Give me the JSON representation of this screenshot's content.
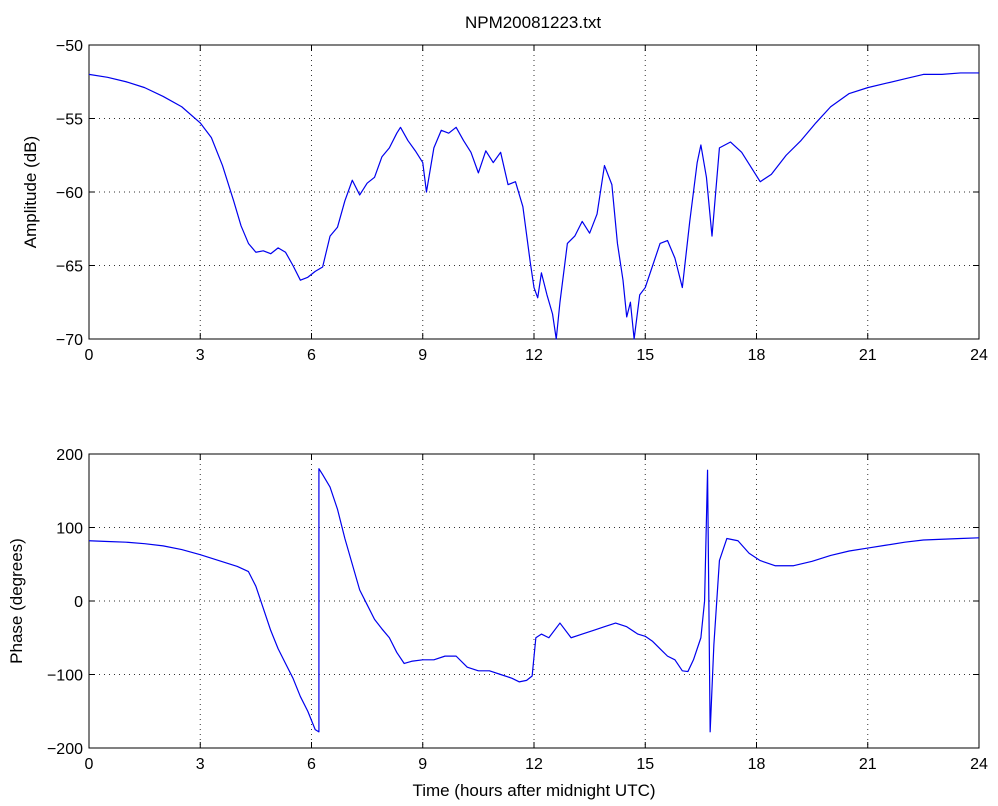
{
  "figure": {
    "title": "NPM20081223.txt"
  },
  "chart_data": [
    {
      "type": "line",
      "ylabel": "Amplitude (dB)",
      "xlabel": "",
      "xlim": [
        0,
        24
      ],
      "ylim": [
        -70,
        -50
      ],
      "xticks": [
        0,
        3,
        6,
        9,
        12,
        15,
        18,
        21,
        24
      ],
      "yticks": [
        -70,
        -65,
        -60,
        -55,
        -50
      ],
      "grid": true,
      "color": "#0000ee",
      "series": [
        {
          "x": [
            0,
            0.5,
            1,
            1.5,
            2,
            2.5,
            3,
            3.3,
            3.6,
            3.9,
            4.1,
            4.3,
            4.5,
            4.7,
            4.9,
            5.1,
            5.3,
            5.5,
            5.7,
            5.9,
            6.1,
            6.3,
            6.5,
            6.7,
            6.9,
            7.1,
            7.3,
            7.5,
            7.7,
            7.9,
            8.1,
            8.3,
            8.4,
            8.6,
            8.8,
            9.0,
            9.1,
            9.3,
            9.5,
            9.7,
            9.9,
            10.1,
            10.3,
            10.5,
            10.7,
            10.9,
            11.1,
            11.3,
            11.5,
            11.7,
            11.9,
            12.0,
            12.1,
            12.2,
            12.35,
            12.5,
            12.6,
            12.7,
            12.9,
            13.1,
            13.3,
            13.5,
            13.7,
            13.9,
            14.1,
            14.25,
            14.4,
            14.5,
            14.6,
            14.7,
            14.85,
            15.0,
            15.2,
            15.4,
            15.6,
            15.8,
            16.0,
            16.2,
            16.4,
            16.5,
            16.65,
            16.8,
            17.0,
            17.3,
            17.6,
            17.9,
            18.1,
            18.4,
            18.8,
            19.2,
            19.6,
            20.0,
            20.5,
            21.0,
            21.5,
            22.0,
            22.5,
            23.0,
            23.5,
            24.0
          ],
          "y": [
            -52.0,
            -52.2,
            -52.5,
            -52.9,
            -53.5,
            -54.2,
            -55.3,
            -56.3,
            -58.2,
            -60.6,
            -62.3,
            -63.5,
            -64.1,
            -64.0,
            -64.2,
            -63.8,
            -64.1,
            -65.0,
            -66.0,
            -65.8,
            -65.4,
            -65.1,
            -63.0,
            -62.4,
            -60.6,
            -59.2,
            -60.2,
            -59.4,
            -59.0,
            -57.6,
            -57.0,
            -56.0,
            -55.6,
            -56.5,
            -57.2,
            -58.0,
            -60.0,
            -57.0,
            -55.8,
            -56.0,
            -55.6,
            -56.5,
            -57.3,
            -58.7,
            -57.2,
            -58.0,
            -57.3,
            -59.5,
            -59.3,
            -61.0,
            -64.8,
            -66.5,
            -67.2,
            -65.5,
            -67.0,
            -68.3,
            -70.0,
            -67.5,
            -63.5,
            -63.0,
            -62.0,
            -62.8,
            -61.5,
            -58.2,
            -59.5,
            -63.5,
            -66.0,
            -68.5,
            -67.5,
            -70.0,
            -67.0,
            -66.5,
            -65.0,
            -63.5,
            -63.3,
            -64.5,
            -66.5,
            -62.0,
            -58.0,
            -56.8,
            -59.0,
            -63.0,
            -57.0,
            -56.6,
            -57.3,
            -58.5,
            -59.3,
            -58.8,
            -57.5,
            -56.5,
            -55.3,
            -54.2,
            -53.3,
            -52.9,
            -52.6,
            -52.3,
            -52.0,
            -52.0,
            -51.9,
            -51.9
          ]
        }
      ]
    },
    {
      "type": "line",
      "ylabel": "Phase (degrees)",
      "xlabel": "Time (hours after midnight UTC)",
      "xlim": [
        0,
        24
      ],
      "ylim": [
        -200,
        200
      ],
      "xticks": [
        0,
        3,
        6,
        9,
        12,
        15,
        18,
        21,
        24
      ],
      "yticks": [
        -200,
        -100,
        0,
        100,
        200
      ],
      "grid": true,
      "color": "#0000ee",
      "series": [
        {
          "x": [
            0,
            0.5,
            1,
            1.5,
            2,
            2.5,
            3,
            3.5,
            4.0,
            4.3,
            4.5,
            4.7,
            4.9,
            5.1,
            5.3,
            5.5,
            5.7,
            5.9,
            6.1,
            6.2,
            6.2,
            6.3,
            6.5,
            6.7,
            6.9,
            7.1,
            7.3,
            7.5,
            7.7,
            7.9,
            8.1,
            8.3,
            8.5,
            8.7,
            9.0,
            9.3,
            9.6,
            9.9,
            10.2,
            10.5,
            10.8,
            11.1,
            11.4,
            11.6,
            11.8,
            11.95,
            12.05,
            12.2,
            12.4,
            12.7,
            13.0,
            13.3,
            13.6,
            13.9,
            14.2,
            14.5,
            14.8,
            15.0,
            15.2,
            15.4,
            15.6,
            15.8,
            16.0,
            16.15,
            16.3,
            16.5,
            16.6,
            16.68,
            16.75,
            16.85,
            17.0,
            17.2,
            17.5,
            17.8,
            18.1,
            18.5,
            19.0,
            19.5,
            20.0,
            20.5,
            21.0,
            21.5,
            22.0,
            22.5,
            23.0,
            23.5,
            24.0
          ],
          "y": [
            82,
            81,
            80,
            78,
            75,
            70,
            63,
            55,
            47,
            40,
            20,
            -10,
            -40,
            -65,
            -85,
            -105,
            -130,
            -150,
            -175,
            -178,
            180,
            172,
            155,
            125,
            85,
            50,
            15,
            -5,
            -25,
            -38,
            -50,
            -70,
            -85,
            -82,
            -80,
            -80,
            -75,
            -75,
            -90,
            -95,
            -95,
            -100,
            -105,
            -110,
            -108,
            -102,
            -50,
            -45,
            -50,
            -30,
            -50,
            -45,
            -40,
            -35,
            -30,
            -35,
            -45,
            -48,
            -55,
            -65,
            -75,
            -80,
            -95,
            -96,
            -80,
            -50,
            0,
            178,
            -178,
            -60,
            55,
            85,
            82,
            65,
            55,
            48,
            48,
            54,
            62,
            68,
            72,
            76,
            80,
            83,
            84,
            85,
            86
          ]
        }
      ]
    }
  ]
}
